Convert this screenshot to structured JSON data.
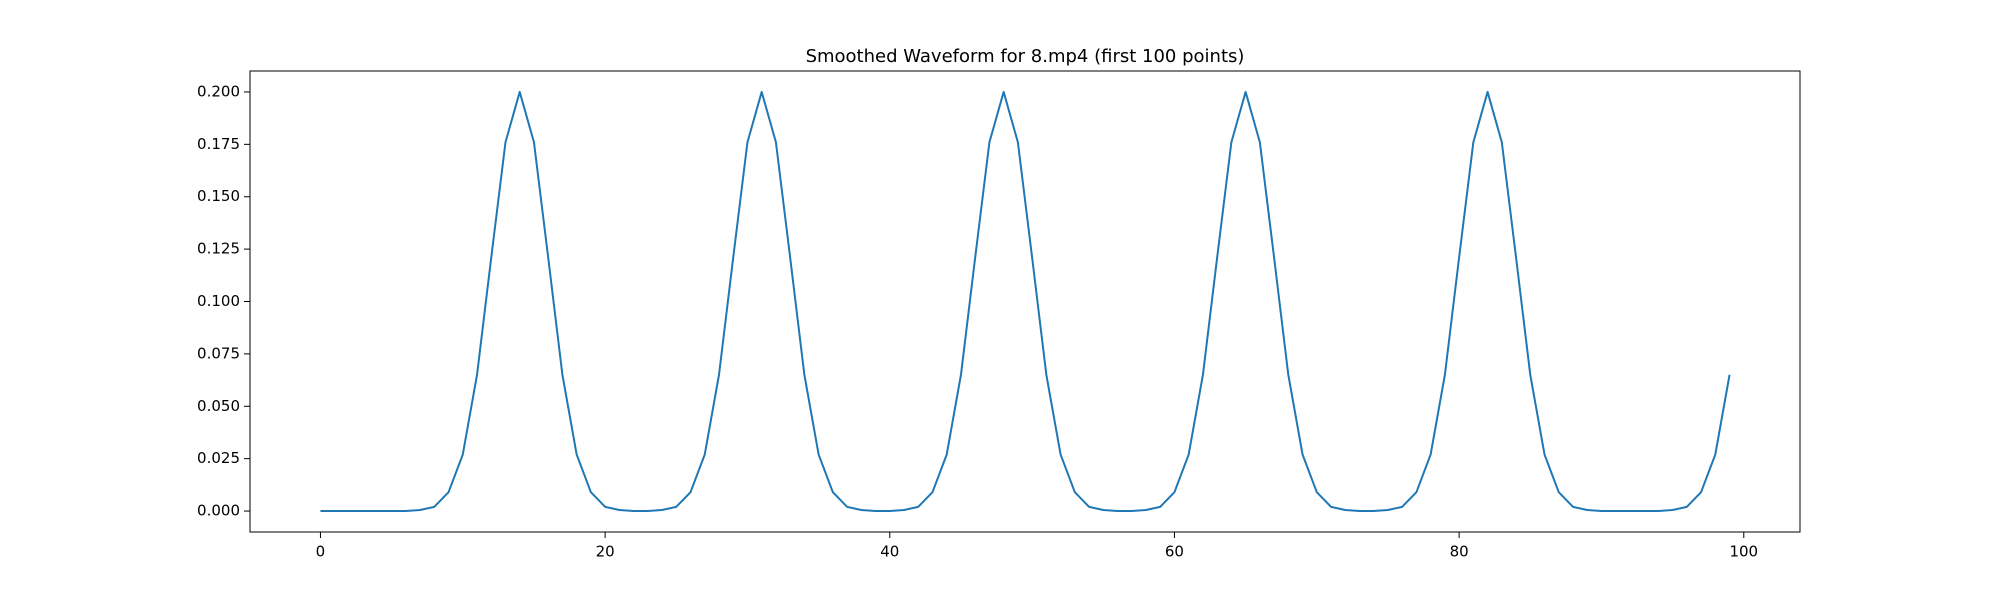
{
  "chart_data": {
    "type": "line",
    "title": "Smoothed Waveform for 8.mp4 (first 100 points)",
    "color": "#1f77b4",
    "x": [
      0,
      1,
      2,
      3,
      4,
      5,
      6,
      7,
      8,
      9,
      10,
      11,
      12,
      13,
      14,
      15,
      16,
      17,
      18,
      19,
      20,
      21,
      22,
      23,
      24,
      25,
      26,
      27,
      28,
      29,
      30,
      31,
      32,
      33,
      34,
      35,
      36,
      37,
      38,
      39,
      40,
      41,
      42,
      43,
      44,
      45,
      46,
      47,
      48,
      49,
      50,
      51,
      52,
      53,
      54,
      55,
      56,
      57,
      58,
      59,
      60,
      61,
      62,
      63,
      64,
      65,
      66,
      67,
      68,
      69,
      70,
      71,
      72,
      73,
      74,
      75,
      76,
      77,
      78,
      79,
      80,
      81,
      82,
      83,
      84,
      85,
      86,
      87,
      88,
      89,
      90,
      91,
      92,
      93,
      94,
      95,
      96,
      97,
      98,
      99
    ],
    "values": [
      0,
      0,
      0,
      0,
      0,
      0,
      0,
      0.0005,
      0.002,
      0.009,
      0.027,
      0.065,
      0.121,
      0.176,
      0.2,
      0.176,
      0.121,
      0.065,
      0.027,
      0.009,
      0.002,
      0.0005,
      0,
      0,
      0.0005,
      0.002,
      0.009,
      0.027,
      0.065,
      0.121,
      0.176,
      0.2,
      0.176,
      0.121,
      0.065,
      0.027,
      0.009,
      0.002,
      0.0005,
      0,
      0,
      0.0005,
      0.002,
      0.009,
      0.027,
      0.065,
      0.121,
      0.176,
      0.2,
      0.176,
      0.121,
      0.065,
      0.027,
      0.009,
      0.002,
      0.0005,
      0,
      0,
      0.0005,
      0.002,
      0.009,
      0.027,
      0.065,
      0.121,
      0.176,
      0.2,
      0.176,
      0.121,
      0.065,
      0.027,
      0.009,
      0.002,
      0.0005,
      0,
      0,
      0.0005,
      0.002,
      0.009,
      0.027,
      0.065,
      0.121,
      0.176,
      0.2,
      0.176,
      0.121,
      0.065,
      0.027,
      0.009,
      0.002,
      0.0005,
      0,
      0,
      0,
      0,
      0,
      0.0005,
      0.002,
      0.009,
      0.027,
      0.065
    ],
    "xlim": [
      -4.95,
      103.95
    ],
    "ylim": [
      -0.01,
      0.21
    ],
    "xticks": [
      0,
      20,
      40,
      60,
      80,
      100
    ],
    "yticks": [
      {
        "value": 0,
        "label": "0.000"
      },
      {
        "value": 0.025,
        "label": "0.025"
      },
      {
        "value": 0.05,
        "label": "0.050"
      },
      {
        "value": 0.075,
        "label": "0.075"
      },
      {
        "value": 0.1,
        "label": "0.100"
      },
      {
        "value": 0.125,
        "label": "0.125"
      },
      {
        "value": 0.15,
        "label": "0.150"
      },
      {
        "value": 0.175,
        "label": "0.175"
      },
      {
        "value": 0.2,
        "label": "0.200"
      }
    ]
  }
}
